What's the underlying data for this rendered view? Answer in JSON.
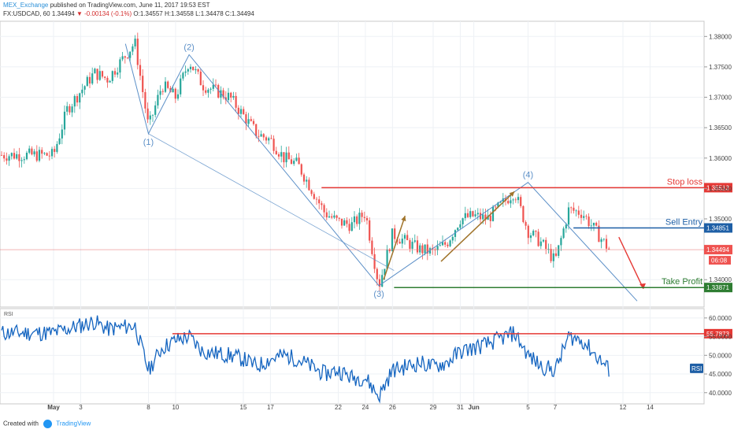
{
  "header": {
    "publisher": "MEX_Exchange",
    "published_text": "published on TradingView.com, June 11, 2017 19:53 EST",
    "symbol_line": "FX:USDCAD, 60",
    "last": "1.34494",
    "change": "▼ -0.00134 (-0.1%)",
    "ohlc": "O:1.34557 H:1.34558 L:1.34478 C:1.34494"
  },
  "footer": {
    "created_with": "Created with",
    "brand": "TradingView"
  },
  "colors": {
    "up": "#26a69a",
    "down": "#ef5350",
    "wave": "#5b8fc7",
    "stop": "#e53935",
    "entry": "#1e5fa6",
    "profit": "#2e7d32",
    "rsi": "#1565c0",
    "arrow": "#a0742b"
  },
  "chart_data": [
    {
      "type": "candlestick",
      "title": "",
      "xlabel": "",
      "ylabel": "",
      "x_ticks": [
        "May",
        "3",
        "8",
        "10",
        "15",
        "17",
        "22",
        "24",
        "26",
        "29",
        "31",
        "Jun",
        "5",
        "7",
        "12",
        "14"
      ],
      "y_ticks": [
        "1.38000",
        "1.37500",
        "1.37000",
        "1.36500",
        "1.36000",
        "1.35500",
        "1.35000",
        "1.34000"
      ],
      "ylim": [
        1.3355,
        1.3825
      ],
      "grid": true,
      "last_price": "1.34494",
      "countdown": "06:08",
      "wave_labels": [
        "(1)",
        "(2)",
        "(3)",
        "(4)"
      ],
      "wave_points": [
        {
          "label": "(1)",
          "date": "May 8",
          "price": 1.364
        },
        {
          "label": "(2)",
          "date": "May 11",
          "price": 1.377
        },
        {
          "label": "(3)",
          "date": "May 25",
          "price": 1.339
        },
        {
          "label": "(4)",
          "date": "Jun 5",
          "price": 1.356
        }
      ],
      "close_path": [
        {
          "date": "May 1",
          "close": 1.3605
        },
        {
          "date": "May 2",
          "close": 1.368
        },
        {
          "date": "May 3",
          "close": 1.371
        },
        {
          "date": "May 4",
          "close": 1.374
        },
        {
          "date": "May 5",
          "close": 1.373
        },
        {
          "date": "May 7",
          "close": 1.379
        },
        {
          "date": "May 8",
          "close": 1.365
        },
        {
          "date": "May 9",
          "close": 1.372
        },
        {
          "date": "May 10",
          "close": 1.37
        },
        {
          "date": "May 11",
          "close": 1.376
        },
        {
          "date": "May 12",
          "close": 1.372
        },
        {
          "date": "May 14",
          "close": 1.37
        },
        {
          "date": "May 15",
          "close": 1.367
        },
        {
          "date": "May 16",
          "close": 1.364
        },
        {
          "date": "May 17",
          "close": 1.363
        },
        {
          "date": "May 18",
          "close": 1.36
        },
        {
          "date": "May 19",
          "close": 1.359
        },
        {
          "date": "May 21",
          "close": 1.351
        },
        {
          "date": "May 22",
          "close": 1.3495
        },
        {
          "date": "May 23",
          "close": 1.349
        },
        {
          "date": "May 24",
          "close": 1.351
        },
        {
          "date": "May 25",
          "close": 1.339
        },
        {
          "date": "May 26",
          "close": 1.3475
        },
        {
          "date": "May 28",
          "close": 1.345
        },
        {
          "date": "May 29",
          "close": 1.3445
        },
        {
          "date": "May 30",
          "close": 1.346
        },
        {
          "date": "May 31",
          "close": 1.35
        },
        {
          "date": "Jun 1",
          "close": 1.3505
        },
        {
          "date": "Jun 2",
          "close": 1.35
        },
        {
          "date": "Jun 4",
          "close": 1.3545
        },
        {
          "date": "Jun 5",
          "close": 1.348
        },
        {
          "date": "Jun 6",
          "close": 1.346
        },
        {
          "date": "Jun 7",
          "close": 1.343
        },
        {
          "date": "Jun 8",
          "close": 1.3515
        },
        {
          "date": "Jun 9",
          "close": 1.351
        },
        {
          "date": "Jun 11",
          "close": 1.3449
        }
      ],
      "levels": [
        {
          "name": "Stop loss",
          "value": 1.35513,
          "label": "1.35513"
        },
        {
          "name": "Sell Entry",
          "value": 1.34851,
          "label": "1.34851"
        },
        {
          "name": "Take Profit",
          "value": 1.33871,
          "label": "1.33871"
        }
      ]
    },
    {
      "type": "line",
      "title": "",
      "panel_label": "RSI",
      "legend_badge": "RSI",
      "y_ticks": [
        "60.0000",
        "55.0000",
        "50.0000",
        "45.0000",
        "40.0000"
      ],
      "ylim": [
        37,
        62.5
      ],
      "level": {
        "value": 55.7873,
        "label": "55.7873"
      },
      "series": [
        {
          "values": [
            {
              "date": "May 1",
              "value": 56
            },
            {
              "date": "May 2",
              "value": 57
            },
            {
              "date": "May 3",
              "value": 58
            },
            {
              "date": "May 4",
              "value": 59
            },
            {
              "date": "May 5",
              "value": 57
            },
            {
              "date": "May 7",
              "value": 58
            },
            {
              "date": "May 8",
              "value": 46
            },
            {
              "date": "May 9",
              "value": 52
            },
            {
              "date": "May 10",
              "value": 54
            },
            {
              "date": "May 11",
              "value": 55
            },
            {
              "date": "May 12",
              "value": 51
            },
            {
              "date": "May 14",
              "value": 50
            },
            {
              "date": "May 15",
              "value": 49
            },
            {
              "date": "May 16",
              "value": 47
            },
            {
              "date": "May 17",
              "value": 49
            },
            {
              "date": "May 18",
              "value": 50
            },
            {
              "date": "May 19",
              "value": 49
            },
            {
              "date": "May 21",
              "value": 45
            },
            {
              "date": "May 22",
              "value": 46
            },
            {
              "date": "May 23",
              "value": 44
            },
            {
              "date": "May 24",
              "value": 44
            },
            {
              "date": "May 25",
              "value": 39
            },
            {
              "date": "May 26",
              "value": 46
            },
            {
              "date": "May 28",
              "value": 48
            },
            {
              "date": "May 29",
              "value": 47
            },
            {
              "date": "May 30",
              "value": 48
            },
            {
              "date": "May 31",
              "value": 51
            },
            {
              "date": "Jun 1",
              "value": 52
            },
            {
              "date": "Jun 2",
              "value": 53
            },
            {
              "date": "Jun 4",
              "value": 56
            },
            {
              "date": "Jun 5",
              "value": 50
            },
            {
              "date": "Jun 6",
              "value": 47
            },
            {
              "date": "Jun 7",
              "value": 46
            },
            {
              "date": "Jun 8",
              "value": 55
            },
            {
              "date": "Jun 9",
              "value": 54
            },
            {
              "date": "Jun 11",
              "value": 46
            }
          ]
        }
      ]
    }
  ]
}
